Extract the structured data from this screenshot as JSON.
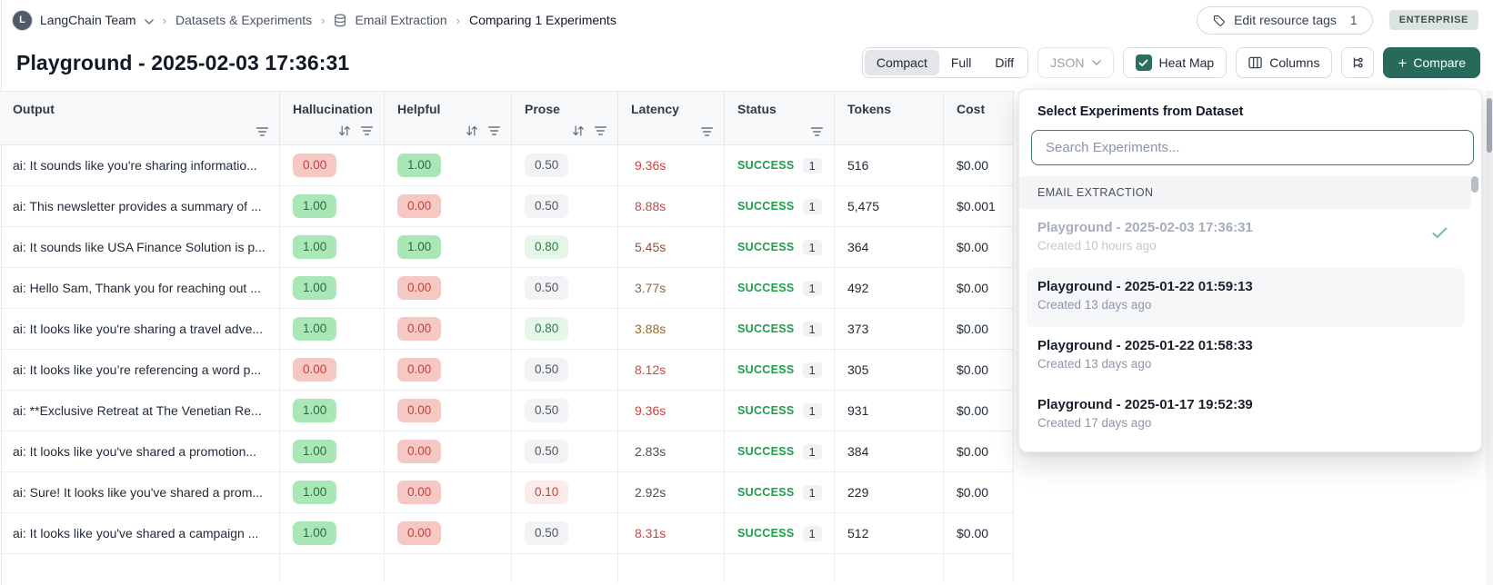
{
  "breadcrumb": {
    "team": "LangChain Team",
    "section": "Datasets & Experiments",
    "dataset": "Email Extraction",
    "current": "Comparing 1 Experiments"
  },
  "top_right": {
    "edit_tags_label": "Edit resource tags",
    "edit_tags_count": "1",
    "plan_badge": "ENTERPRISE"
  },
  "header": {
    "title": "Playground - 2025-02-03 17:36:31"
  },
  "toolbar": {
    "view_modes": [
      "Compact",
      "Full",
      "Diff"
    ],
    "active_view": "Compact",
    "json_label": "JSON",
    "heatmap_label": "Heat Map",
    "heatmap_checked": true,
    "columns_label": "Columns",
    "compare_label": "Compare"
  },
  "colors": {
    "accent_teal": "#276a5b",
    "chip_good_bg": "#a9e8b6",
    "chip_bad_bg": "#f6c8c4",
    "success_green": "#1f9d4c"
  },
  "table": {
    "columns": [
      {
        "label": "Output",
        "sortable": false,
        "filterable": true
      },
      {
        "label": "Hallucination",
        "sortable": true,
        "filterable": true
      },
      {
        "label": "Helpful",
        "sortable": true,
        "filterable": true
      },
      {
        "label": "Prose",
        "sortable": true,
        "filterable": true
      },
      {
        "label": "Latency",
        "sortable": false,
        "filterable": true
      },
      {
        "label": "Status",
        "sortable": false,
        "filterable": true
      },
      {
        "label": "Tokens",
        "sortable": false,
        "filterable": false
      },
      {
        "label": "Cost",
        "sortable": false,
        "filterable": false
      }
    ],
    "rows": [
      {
        "output": "ai: It sounds like you're sharing informatio...",
        "hallucination": "0.00",
        "hallucination_tone": "bad",
        "helpful": "1.00",
        "helpful_tone": "good",
        "prose": "0.50",
        "prose_tone": "neutral",
        "latency": "9.36s",
        "latency_color": "#d0423d",
        "status": "SUCCESS",
        "status_count": "1",
        "tokens": "516",
        "cost": "$0.00"
      },
      {
        "output": "ai: This newsletter provides a summary of ...",
        "hallucination": "1.00",
        "hallucination_tone": "good",
        "helpful": "0.00",
        "helpful_tone": "bad",
        "prose": "0.50",
        "prose_tone": "neutral",
        "latency": "8.88s",
        "latency_color": "#c94a41",
        "status": "SUCCESS",
        "status_count": "1",
        "tokens": "5,475",
        "cost": "$0.001"
      },
      {
        "output": "ai: It sounds like USA Finance Solution is p...",
        "hallucination": "1.00",
        "hallucination_tone": "good",
        "helpful": "1.00",
        "helpful_tone": "good",
        "prose": "0.80",
        "prose_tone": "good-light",
        "latency": "5.45s",
        "latency_color": "#90513a",
        "status": "SUCCESS",
        "status_count": "1",
        "tokens": "364",
        "cost": "$0.00"
      },
      {
        "output": "ai: Hello Sam, Thank you for reaching out ...",
        "hallucination": "1.00",
        "hallucination_tone": "good",
        "helpful": "0.00",
        "helpful_tone": "bad",
        "prose": "0.50",
        "prose_tone": "neutral",
        "latency": "3.77s",
        "latency_color": "#8a6a36",
        "status": "SUCCESS",
        "status_count": "1",
        "tokens": "492",
        "cost": "$0.00"
      },
      {
        "output": "ai: It looks like you're sharing a travel adve...",
        "hallucination": "1.00",
        "hallucination_tone": "good",
        "helpful": "0.00",
        "helpful_tone": "bad",
        "prose": "0.80",
        "prose_tone": "good-light",
        "latency": "3.88s",
        "latency_color": "#97672f",
        "status": "SUCCESS",
        "status_count": "1",
        "tokens": "373",
        "cost": "$0.00"
      },
      {
        "output": "ai: It looks like you’re referencing a word p...",
        "hallucination": "0.00",
        "hallucination_tone": "bad",
        "helpful": "0.00",
        "helpful_tone": "bad",
        "prose": "0.50",
        "prose_tone": "neutral",
        "latency": "8.12s",
        "latency_color": "#d2473f",
        "status": "SUCCESS",
        "status_count": "1",
        "tokens": "305",
        "cost": "$0.00"
      },
      {
        "output": "ai: **Exclusive Retreat at The Venetian Re...",
        "hallucination": "1.00",
        "hallucination_tone": "good",
        "helpful": "0.00",
        "helpful_tone": "bad",
        "prose": "0.50",
        "prose_tone": "neutral",
        "latency": "9.36s",
        "latency_color": "#d0423d",
        "status": "SUCCESS",
        "status_count": "1",
        "tokens": "931",
        "cost": "$0.00"
      },
      {
        "output": "ai: It looks like you've shared a promotion...",
        "hallucination": "1.00",
        "hallucination_tone": "good",
        "helpful": "0.00",
        "helpful_tone": "bad",
        "prose": "0.50",
        "prose_tone": "neutral",
        "latency": "2.83s",
        "latency_color": "#45584f",
        "status": "SUCCESS",
        "status_count": "1",
        "tokens": "384",
        "cost": "$0.00"
      },
      {
        "output": "ai: Sure! It looks like you've shared a prom...",
        "hallucination": "1.00",
        "hallucination_tone": "good",
        "helpful": "0.00",
        "helpful_tone": "bad",
        "prose": "0.10",
        "prose_tone": "bad-light",
        "latency": "2.92s",
        "latency_color": "#45584f",
        "status": "SUCCESS",
        "status_count": "1",
        "tokens": "229",
        "cost": "$0.00"
      },
      {
        "output": "ai: It looks like you've shared a campaign ...",
        "hallucination": "1.00",
        "hallucination_tone": "good",
        "helpful": "0.00",
        "helpful_tone": "bad",
        "prose": "0.50",
        "prose_tone": "neutral",
        "latency": "8.31s",
        "latency_color": "#cf433e",
        "status": "SUCCESS",
        "status_count": "1",
        "tokens": "512",
        "cost": "$0.00"
      }
    ]
  },
  "panel": {
    "title": "Select Experiments from Dataset",
    "search_placeholder": "Search Experiments...",
    "section": "EMAIL EXTRACTION",
    "items": [
      {
        "name": "Playground - 2025-02-03 17:36:31",
        "created": "Created 10 hours ago",
        "selected": true,
        "disabled": true,
        "highlighted": false
      },
      {
        "name": "Playground - 2025-01-22 01:59:13",
        "created": "Created 13 days ago",
        "selected": false,
        "disabled": false,
        "highlighted": true
      },
      {
        "name": "Playground - 2025-01-22 01:58:33",
        "created": "Created 13 days ago",
        "selected": false,
        "disabled": false,
        "highlighted": false
      },
      {
        "name": "Playground - 2025-01-17 19:52:39",
        "created": "Created 17 days ago",
        "selected": false,
        "disabled": false,
        "highlighted": false
      }
    ]
  }
}
